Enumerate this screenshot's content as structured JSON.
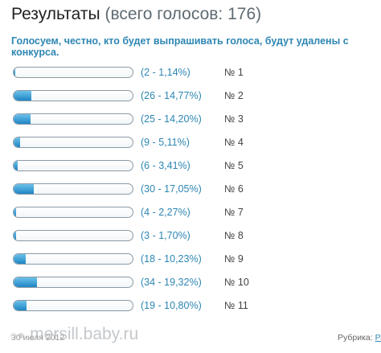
{
  "header": {
    "title": "Результаты",
    "total_votes": "(всего голосов: 176)"
  },
  "poll": {
    "question": "Голосуем, честно, кто будет выпрашивать голоса, будут удалены с конкурса.",
    "options": [
      {
        "stat": "(2 - 1,14%)",
        "label": "№ 1",
        "percent": 1.14
      },
      {
        "stat": "(26 - 14,77%)",
        "label": "№ 2",
        "percent": 14.77
      },
      {
        "stat": "(25 - 14,20%)",
        "label": "№ 3",
        "percent": 14.2
      },
      {
        "stat": "(9 - 5,11%)",
        "label": "№ 4",
        "percent": 5.11
      },
      {
        "stat": "(6 - 3,41%)",
        "label": "№ 5",
        "percent": 3.41
      },
      {
        "stat": "(30 - 17,05%)",
        "label": "№ 6",
        "percent": 17.05
      },
      {
        "stat": "(4 - 2,27%)",
        "label": "№ 7",
        "percent": 2.27
      },
      {
        "stat": "(3 - 1,70%)",
        "label": "№ 8",
        "percent": 1.7
      },
      {
        "stat": "(18 - 10,23%)",
        "label": "№ 9",
        "percent": 10.23
      },
      {
        "stat": "(34 - 19,32%)",
        "label": "№ 10",
        "percent": 19.32
      },
      {
        "stat": "(19 - 10,80%)",
        "label": "№ 11",
        "percent": 10.8
      }
    ]
  },
  "footer": {
    "watermark": "mersill.baby.ru",
    "date": "30 июля 2012",
    "rubric_label": "Рубрика:",
    "rubric_link": "Ра"
  },
  "colors": {
    "accent": "#2d86b3",
    "bar_fill": "#1f86c4"
  }
}
